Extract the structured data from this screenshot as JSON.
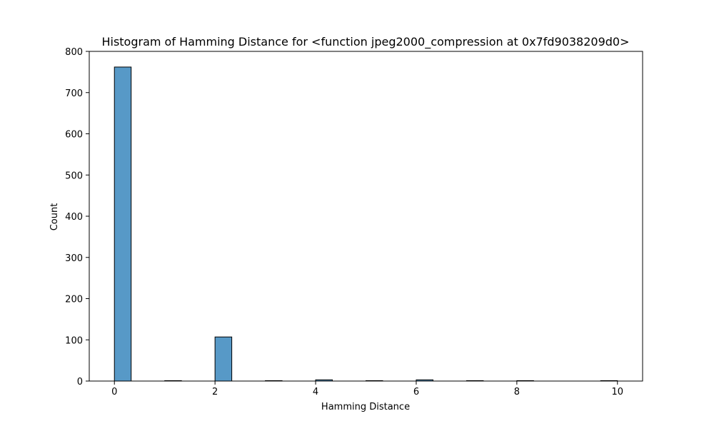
{
  "chart_data": {
    "type": "bar",
    "title": "Histogram of Hamming Distance for <function jpeg2000_compression at 0x7fd9038209d0>",
    "xlabel": "Hamming Distance",
    "ylabel": "Count",
    "xlim": [
      -0.5,
      10.5
    ],
    "ylim": [
      0,
      800
    ],
    "xticks": [
      0,
      2,
      4,
      6,
      8,
      10
    ],
    "yticks": [
      0,
      100,
      200,
      300,
      400,
      500,
      600,
      700,
      800
    ],
    "bin_width": 0.3333,
    "bins": [
      {
        "x_start": 0.0,
        "x_end": 0.3333,
        "count": 762
      },
      {
        "x_start": 1.0,
        "x_end": 1.3333,
        "count": 1
      },
      {
        "x_start": 2.0,
        "x_end": 2.3333,
        "count": 107
      },
      {
        "x_start": 3.0,
        "x_end": 3.3333,
        "count": 1
      },
      {
        "x_start": 4.0,
        "x_end": 4.3333,
        "count": 3
      },
      {
        "x_start": 5.0,
        "x_end": 5.3333,
        "count": 1
      },
      {
        "x_start": 6.0,
        "x_end": 6.3333,
        "count": 3
      },
      {
        "x_start": 7.0,
        "x_end": 7.3333,
        "count": 1
      },
      {
        "x_start": 8.0,
        "x_end": 8.3333,
        "count": 1
      },
      {
        "x_start": 9.6667,
        "x_end": 10.0,
        "count": 1
      }
    ],
    "bar_color": "#5799c7",
    "edge_color": "#000000",
    "grid": false,
    "legend": "none"
  }
}
